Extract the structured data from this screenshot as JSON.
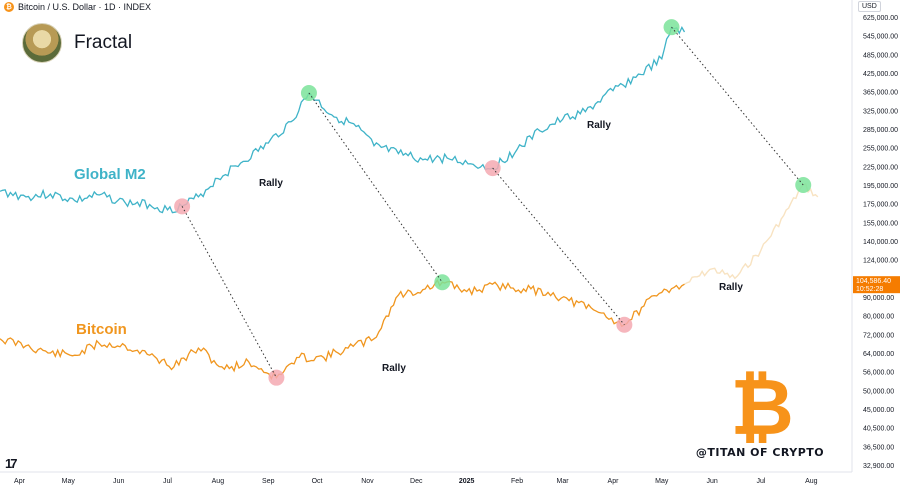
{
  "header": {
    "symbol_title": "Bitcoin / U.S. Dollar · 1D · INDEX",
    "symbol_icon": "bitcoin-coin-icon"
  },
  "brand": {
    "name": "Fractal",
    "avatar_icon": "profile-avatar-icon"
  },
  "axis": {
    "currency_label": "USD"
  },
  "price_tag": {
    "value": "104,586.40",
    "time": "10:52:28",
    "color": "#f57c00"
  },
  "watermark": {
    "text": "@TITAN OF CRYPTO",
    "logo_icon": "bitcoin-logo-icon",
    "logo_color": "#f7931a"
  },
  "colors": {
    "m2": "#3fb3c8",
    "btc": "#f0961f",
    "btc_projection": "#f8e3c2",
    "top_marker": "#7be39a",
    "bottom_marker": "#f5a9b2",
    "connector": "#333333"
  },
  "chart_data": {
    "type": "line",
    "x_ticks": [
      "Apr",
      "May",
      "Jun",
      "Jul",
      "Aug",
      "Sep",
      "Oct",
      "Nov",
      "Dec",
      "2025",
      "Feb",
      "Mar",
      "Apr",
      "May",
      "Jun",
      "Jul",
      "Aug"
    ],
    "y_ticks": [
      "625,000.00",
      "545,000.00",
      "485,000.00",
      "425,000.00",
      "365,000.00",
      "325,000.00",
      "285,000.00",
      "255,000.00",
      "225,000.00",
      "195,000.00",
      "175,000.00",
      "155,000.00",
      "140,000.00",
      "124,000.00",
      "112,000.00",
      "90,000.00",
      "80,000.00",
      "72,000.00",
      "64,000.00",
      "56,000.00",
      "50,000.00",
      "45,000.00",
      "40,500.00",
      "36,500.00",
      "32,900.00"
    ],
    "scale": "log",
    "series": [
      {
        "name": "Global M2",
        "x": [
          "2024-03-20",
          "2024-04-05",
          "2024-04-20",
          "2024-05-05",
          "2024-05-20",
          "2024-06-05",
          "2024-06-20",
          "2024-07-01",
          "2024-07-10",
          "2024-07-20",
          "2024-08-01",
          "2024-08-15",
          "2024-09-01",
          "2024-09-15",
          "2024-09-26",
          "2024-10-10",
          "2024-10-25",
          "2024-11-05",
          "2024-11-20",
          "2024-12-05",
          "2024-12-20",
          "2025-01-05",
          "2025-01-17",
          "2025-02-01",
          "2025-02-15",
          "2025-03-01",
          "2025-03-15",
          "2025-04-01",
          "2025-04-15",
          "2025-05-01",
          "2025-05-07",
          "2025-05-15"
        ],
        "y": [
          188000,
          182000,
          185000,
          178000,
          184000,
          176000,
          174000,
          168000,
          172000,
          182000,
          205000,
          230000,
          262000,
          300000,
          362000,
          315000,
          290000,
          258000,
          245000,
          235000,
          238000,
          228000,
          222000,
          252000,
          282000,
          305000,
          322000,
          368000,
          410000,
          470000,
          580000,
          560000
        ]
      },
      {
        "name": "Bitcoin",
        "x": [
          "2024-03-20",
          "2024-04-05",
          "2024-04-20",
          "2024-05-05",
          "2024-05-20",
          "2024-06-05",
          "2024-06-20",
          "2024-07-05",
          "2024-07-20",
          "2024-08-05",
          "2024-08-20",
          "2024-09-06",
          "2024-09-20",
          "2024-10-05",
          "2024-10-20",
          "2024-11-05",
          "2024-11-20",
          "2024-12-05",
          "2024-12-17",
          "2025-01-01",
          "2025-01-20",
          "2025-02-05",
          "2025-02-20",
          "2025-03-05",
          "2025-03-20",
          "2025-04-08",
          "2025-04-20",
          "2025-05-01",
          "2025-05-10",
          "2025-05-15"
        ],
        "y": [
          70000,
          67000,
          64000,
          63000,
          68000,
          67000,
          63000,
          58000,
          66000,
          57000,
          60000,
          54000,
          62000,
          62000,
          66000,
          70000,
          92000,
          98000,
          107000,
          96000,
          103000,
          99000,
          95000,
          88000,
          83000,
          76000,
          85000,
          95000,
          103000,
          104586.4
        ]
      },
      {
        "name": "",
        "x": [
          "2025-05-15",
          "2025-06-01",
          "2025-06-15",
          "2025-07-01",
          "2025-07-15",
          "2025-07-27",
          "2025-08-05"
        ],
        "y": [
          104586.4,
          118000,
          112000,
          132000,
          162000,
          195000,
          182000
        ]
      }
    ],
    "annotations": [
      {
        "text": "Global M2"
      },
      {
        "text": "Bitcoin"
      },
      {
        "text": "Rally"
      },
      {
        "text": "Rally"
      },
      {
        "text": "Rally"
      },
      {
        "text": "Rally"
      }
    ]
  }
}
